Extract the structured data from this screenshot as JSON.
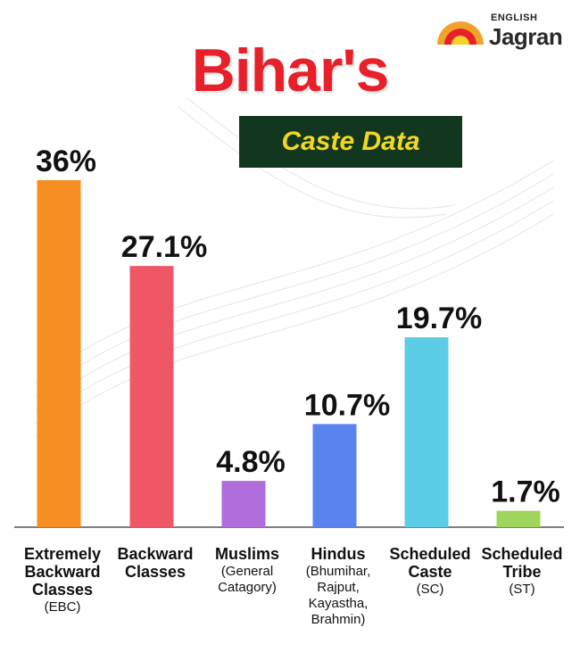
{
  "header": {
    "title": "Bihar's",
    "subtitle": "Caste Data"
  },
  "logo": {
    "top_text": "ENGLISH",
    "brand": "Jagran"
  },
  "colors": {
    "title": "#e8202a",
    "subtitle_bg": "#12371f",
    "subtitle_text": "#f3d81f"
  },
  "chart_data": {
    "type": "bar",
    "title": "Bihar's Caste Data",
    "categories": [
      "Extremely Backward Classes (EBC)",
      "Backward Classes",
      "Muslims (General Catagory)",
      "Hindus (Bhumihar, Rajput, Kayastha, Brahmin)",
      "Scheduled Caste (SC)",
      "Scheduled Tribe (ST)"
    ],
    "category_lines": [
      {
        "main": [
          "Extremely",
          "Backward",
          "Classes"
        ],
        "sub": [
          "(EBC)"
        ]
      },
      {
        "main": [
          "Backward",
          "Classes"
        ],
        "sub": []
      },
      {
        "main": [
          "Muslims"
        ],
        "sub": [
          "(General",
          "Catagory)"
        ]
      },
      {
        "main": [
          "Hindus"
        ],
        "sub": [
          "(Bhumihar,",
          "Rajput,",
          "Kayastha,",
          "Brahmin)"
        ]
      },
      {
        "main": [
          "Scheduled",
          "Caste"
        ],
        "sub": [
          "(SC)"
        ]
      },
      {
        "main": [
          "Scheduled",
          "Tribe"
        ],
        "sub": [
          "(ST)"
        ]
      }
    ],
    "values": [
      36,
      27.1,
      4.8,
      10.7,
      19.7,
      1.7
    ],
    "value_labels": [
      "36%",
      "27.1%",
      "4.8%",
      "10.7%",
      "19.7%",
      "1.7%"
    ],
    "colors": [
      "#f68f22",
      "#ef5766",
      "#b26ddd",
      "#5a83f0",
      "#5bcde5",
      "#9ed65c"
    ],
    "unit": "%",
    "ylim": [
      0,
      36
    ],
    "grid": false,
    "legend": "none"
  }
}
